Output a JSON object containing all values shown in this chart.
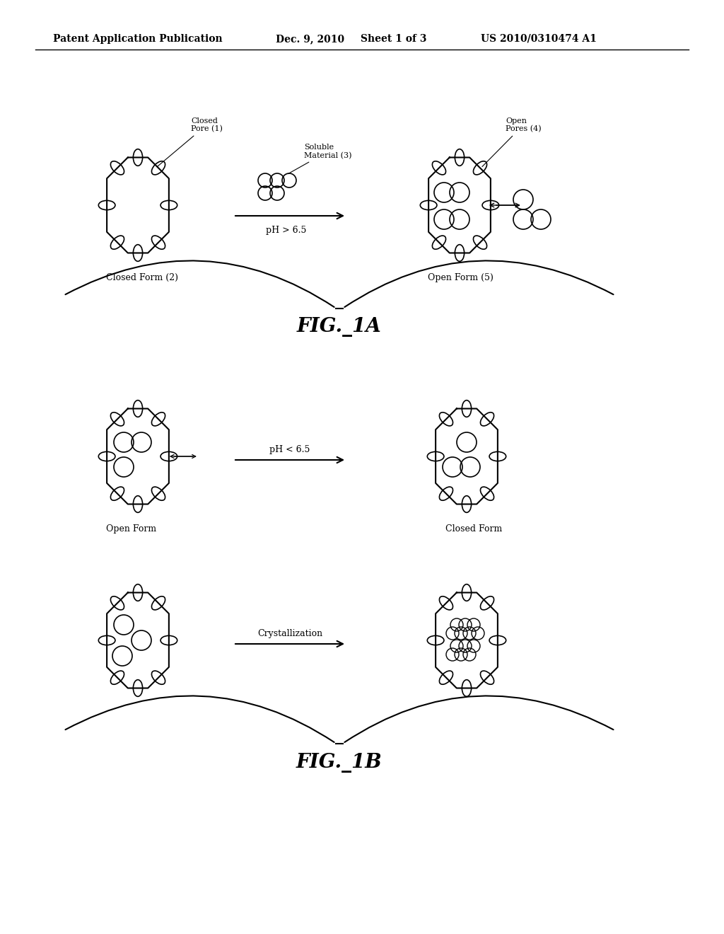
{
  "bg_color": "#ffffff",
  "header_text": "Patent Application Publication",
  "header_date": "Dec. 9, 2010",
  "header_sheet": "Sheet 1 of 3",
  "header_patent": "US 2010/0310474 A1",
  "fig1a_label": "FIG._1A",
  "fig1b_label": "FIG._1B",
  "label_closed_pore": "Closed\nPore (1)",
  "label_soluble": "Soluble\nMaterial (3)",
  "label_open_pores": "Open\nPores (4)",
  "label_closed_form_2": "Closed Form (2)",
  "label_open_form_5": "Open Form (5)",
  "label_open_form": "Open Form",
  "label_closed_form": "Closed Form",
  "label_ph_gt": "pH > 6.5",
  "label_ph_lt": "pH < 6.5",
  "label_crystallization": "Crystallization"
}
